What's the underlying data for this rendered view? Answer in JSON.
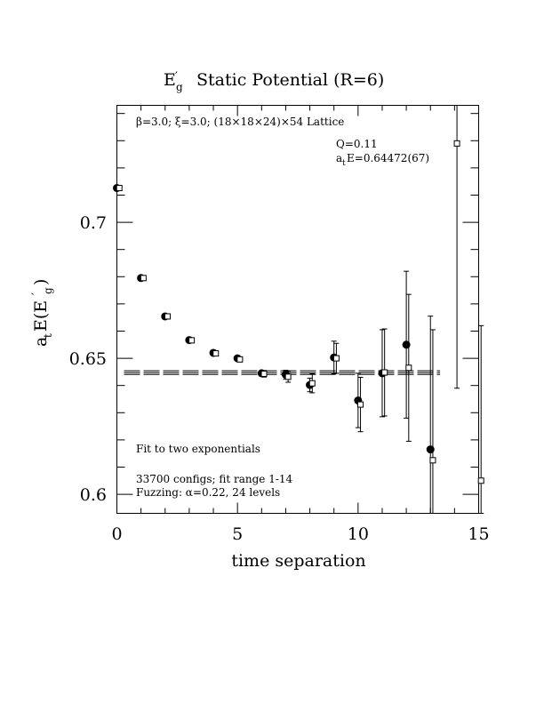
{
  "chart_data": {
    "type": "scatter",
    "title": "Static Potential (R=6)",
    "title_symbol": {
      "base": "E",
      "prime": "′",
      "sub": "g"
    },
    "xlabel": "time separation",
    "ylabel": {
      "base": "a",
      "sub1": "t",
      "mid": "E(E",
      "prime": "′",
      "sub2": "g",
      "end": ")"
    },
    "xlim": [
      0,
      15
    ],
    "ylim": [
      0.593,
      0.743
    ],
    "x_ticks": [
      "0",
      "5",
      "10",
      "15"
    ],
    "y_ticks": [
      "0.6",
      "0.65",
      "0.7"
    ],
    "annotations": {
      "lattice": "β=3.0; ξ=3.0; (18×18×24)×54 Lattice",
      "q": "Q=0.11",
      "ate": {
        "base": "a",
        "sub": "t",
        "rest": "E=0.64472(67)"
      },
      "fit_type": "Fit to two exponentials",
      "configs": "33700 configs; fit range 1-14",
      "fuzzing": "Fuzzing: α=0.22, 24 levels"
    },
    "series": [
      {
        "marker": "filled-circle",
        "points": [
          {
            "x": 0,
            "y": 0.7126,
            "err": 0.0005
          },
          {
            "x": 1,
            "y": 0.6795,
            "err": 0.0005
          },
          {
            "x": 2,
            "y": 0.6654,
            "err": 0.0005
          },
          {
            "x": 3,
            "y": 0.6567,
            "err": 0.0006
          },
          {
            "x": 4,
            "y": 0.652,
            "err": 0.0007
          },
          {
            "x": 5,
            "y": 0.65,
            "err": 0.0008
          },
          {
            "x": 6,
            "y": 0.6445,
            "err": 0.001
          },
          {
            "x": 7,
            "y": 0.644,
            "err": 0.0016
          },
          {
            "x": 8,
            "y": 0.6402,
            "err": 0.0025
          },
          {
            "x": 9,
            "y": 0.6503,
            "err": 0.006
          },
          {
            "x": 10,
            "y": 0.6345,
            "err": 0.01
          },
          {
            "x": 11,
            "y": 0.6445,
            "err": 0.016
          },
          {
            "x": 12,
            "y": 0.655,
            "err": 0.027
          },
          {
            "x": 13,
            "y": 0.6165,
            "err": 0.049
          }
        ]
      },
      {
        "marker": "open-square",
        "points": [
          {
            "x": 0.1,
            "y": 0.7126,
            "err": 0.0005
          },
          {
            "x": 1.1,
            "y": 0.6795,
            "err": 0.0005
          },
          {
            "x": 2.1,
            "y": 0.6654,
            "err": 0.0005
          },
          {
            "x": 3.1,
            "y": 0.6566,
            "err": 0.0006
          },
          {
            "x": 4.1,
            "y": 0.6518,
            "err": 0.0007
          },
          {
            "x": 5.1,
            "y": 0.6496,
            "err": 0.0009
          },
          {
            "x": 6.1,
            "y": 0.6443,
            "err": 0.0012
          },
          {
            "x": 7.1,
            "y": 0.6432,
            "err": 0.002
          },
          {
            "x": 8.1,
            "y": 0.6408,
            "err": 0.0035
          },
          {
            "x": 9.1,
            "y": 0.65,
            "err": 0.0055
          },
          {
            "x": 10.1,
            "y": 0.633,
            "err": 0.01
          },
          {
            "x": 11.1,
            "y": 0.6448,
            "err": 0.016
          },
          {
            "x": 12.1,
            "y": 0.6465,
            "err": 0.027
          },
          {
            "x": 13.1,
            "y": 0.6125,
            "err": 0.048
          },
          {
            "x": 14.1,
            "y": 0.729,
            "err": 0.09
          },
          {
            "x": 15.1,
            "y": 0.605,
            "err": 0.057
          }
        ]
      }
    ],
    "fit": {
      "x_range": [
        0,
        13.4
      ],
      "value": 0.64472,
      "err": 0.00067
    }
  }
}
